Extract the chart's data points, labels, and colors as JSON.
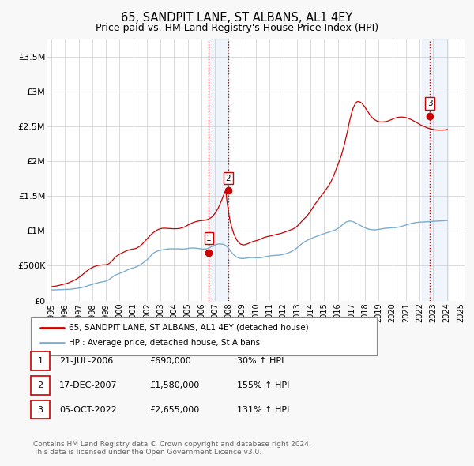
{
  "title": "65, SANDPIT LANE, ST ALBANS, AL1 4EY",
  "subtitle": "Price paid vs. HM Land Registry's House Price Index (HPI)",
  "title_fontsize": 10.5,
  "subtitle_fontsize": 9,
  "background_color": "#f8f8f8",
  "plot_bg_color": "#ffffff",
  "grid_color": "#cccccc",
  "ylim": [
    0,
    3750000
  ],
  "yticks": [
    0,
    500000,
    1000000,
    1500000,
    2000000,
    2500000,
    3000000,
    3500000
  ],
  "ytick_labels": [
    "£0",
    "£500K",
    "£1M",
    "£1.5M",
    "£2M",
    "£2.5M",
    "£3M",
    "£3.5M"
  ],
  "red_line_color": "#cc0000",
  "blue_line_color": "#7aadcf",
  "transactions": [
    {
      "date_num": 2006.55,
      "price": 690000,
      "label": "1"
    },
    {
      "date_num": 2007.96,
      "price": 1580000,
      "label": "2"
    },
    {
      "date_num": 2022.76,
      "price": 2655000,
      "label": "3"
    }
  ],
  "vline_color": "#cc0000",
  "highlight_bg": "#ddeeff",
  "legend_label_red": "65, SANDPIT LANE, ST ALBANS, AL1 4EY (detached house)",
  "legend_label_blue": "HPI: Average price, detached house, St Albans",
  "table_rows": [
    {
      "num": "1",
      "date": "21-JUL-2006",
      "price": "£690,000",
      "change": "30% ↑ HPI"
    },
    {
      "num": "2",
      "date": "17-DEC-2007",
      "price": "£1,580,000",
      "change": "155% ↑ HPI"
    },
    {
      "num": "3",
      "date": "05-OCT-2022",
      "price": "£2,655,000",
      "change": "131% ↑ HPI"
    }
  ],
  "footnote": "Contains HM Land Registry data © Crown copyright and database right 2024.\nThis data is licensed under the Open Government Licence v3.0.",
  "years": [
    1995.04,
    1995.12,
    1995.21,
    1995.29,
    1995.37,
    1995.46,
    1995.54,
    1995.62,
    1995.71,
    1995.79,
    1995.87,
    1995.96,
    1996.04,
    1996.12,
    1996.21,
    1996.29,
    1996.37,
    1996.46,
    1996.54,
    1996.62,
    1996.71,
    1996.79,
    1996.87,
    1996.96,
    1997.04,
    1997.12,
    1997.21,
    1997.29,
    1997.37,
    1997.46,
    1997.54,
    1997.62,
    1997.71,
    1997.79,
    1997.87,
    1997.96,
    1998.04,
    1998.12,
    1998.21,
    1998.29,
    1998.37,
    1998.46,
    1998.54,
    1998.62,
    1998.71,
    1998.79,
    1998.87,
    1998.96,
    1999.04,
    1999.12,
    1999.21,
    1999.29,
    1999.37,
    1999.46,
    1999.54,
    1999.62,
    1999.71,
    1999.79,
    1999.87,
    1999.96,
    2000.04,
    2000.12,
    2000.21,
    2000.29,
    2000.37,
    2000.46,
    2000.54,
    2000.62,
    2000.71,
    2000.79,
    2000.87,
    2000.96,
    2001.04,
    2001.12,
    2001.21,
    2001.29,
    2001.37,
    2001.46,
    2001.54,
    2001.62,
    2001.71,
    2001.79,
    2001.87,
    2001.96,
    2002.04,
    2002.12,
    2002.21,
    2002.29,
    2002.37,
    2002.46,
    2002.54,
    2002.62,
    2002.71,
    2002.79,
    2002.87,
    2002.96,
    2003.04,
    2003.12,
    2003.21,
    2003.29,
    2003.37,
    2003.46,
    2003.54,
    2003.62,
    2003.71,
    2003.79,
    2003.87,
    2003.96,
    2004.04,
    2004.12,
    2004.21,
    2004.29,
    2004.37,
    2004.46,
    2004.54,
    2004.62,
    2004.71,
    2004.79,
    2004.87,
    2004.96,
    2005.04,
    2005.12,
    2005.21,
    2005.29,
    2005.37,
    2005.46,
    2005.54,
    2005.62,
    2005.71,
    2005.79,
    2005.87,
    2005.96,
    2006.04,
    2006.12,
    2006.21,
    2006.29,
    2006.37,
    2006.46,
    2006.54,
    2006.62,
    2006.71,
    2006.79,
    2006.87,
    2006.96,
    2007.04,
    2007.12,
    2007.21,
    2007.29,
    2007.37,
    2007.46,
    2007.54,
    2007.62,
    2007.71,
    2007.79,
    2007.87,
    2007.96,
    2008.04,
    2008.12,
    2008.21,
    2008.29,
    2008.37,
    2008.46,
    2008.54,
    2008.62,
    2008.71,
    2008.79,
    2008.87,
    2008.96,
    2009.04,
    2009.12,
    2009.21,
    2009.29,
    2009.37,
    2009.46,
    2009.54,
    2009.62,
    2009.71,
    2009.79,
    2009.87,
    2009.96,
    2010.04,
    2010.12,
    2010.21,
    2010.29,
    2010.37,
    2010.46,
    2010.54,
    2010.62,
    2010.71,
    2010.79,
    2010.87,
    2010.96,
    2011.04,
    2011.12,
    2011.21,
    2011.29,
    2011.37,
    2011.46,
    2011.54,
    2011.62,
    2011.71,
    2011.79,
    2011.87,
    2011.96,
    2012.04,
    2012.12,
    2012.21,
    2012.29,
    2012.37,
    2012.46,
    2012.54,
    2012.62,
    2012.71,
    2012.79,
    2012.87,
    2012.96,
    2013.04,
    2013.12,
    2013.21,
    2013.29,
    2013.37,
    2013.46,
    2013.54,
    2013.62,
    2013.71,
    2013.79,
    2013.87,
    2013.96,
    2014.04,
    2014.12,
    2014.21,
    2014.29,
    2014.37,
    2014.46,
    2014.54,
    2014.62,
    2014.71,
    2014.79,
    2014.87,
    2014.96,
    2015.04,
    2015.12,
    2015.21,
    2015.29,
    2015.37,
    2015.46,
    2015.54,
    2015.62,
    2015.71,
    2015.79,
    2015.87,
    2015.96,
    2016.04,
    2016.12,
    2016.21,
    2016.29,
    2016.37,
    2016.46,
    2016.54,
    2016.62,
    2016.71,
    2016.79,
    2016.87,
    2016.96,
    2017.04,
    2017.12,
    2017.21,
    2017.29,
    2017.37,
    2017.46,
    2017.54,
    2017.62,
    2017.71,
    2017.79,
    2017.87,
    2017.96,
    2018.04,
    2018.12,
    2018.21,
    2018.29,
    2018.37,
    2018.46,
    2018.54,
    2018.62,
    2018.71,
    2018.79,
    2018.87,
    2018.96,
    2019.04,
    2019.12,
    2019.21,
    2019.29,
    2019.37,
    2019.46,
    2019.54,
    2019.62,
    2019.71,
    2019.79,
    2019.87,
    2019.96,
    2020.04,
    2020.12,
    2020.21,
    2020.29,
    2020.37,
    2020.46,
    2020.54,
    2020.62,
    2020.71,
    2020.79,
    2020.87,
    2020.96,
    2021.04,
    2021.12,
    2021.21,
    2021.29,
    2021.37,
    2021.46,
    2021.54,
    2021.62,
    2021.71,
    2021.79,
    2021.87,
    2021.96,
    2022.04,
    2022.12,
    2022.21,
    2022.29,
    2022.37,
    2022.46,
    2022.54,
    2022.62,
    2022.71,
    2022.79,
    2022.87,
    2022.96,
    2023.04,
    2023.12,
    2023.21,
    2023.29,
    2023.37,
    2023.46,
    2023.54,
    2023.62,
    2023.71,
    2023.79,
    2023.87,
    2023.96,
    2024.04,
    2024.12,
    2024.21,
    2024.29,
    2024.37,
    2024.46,
    2024.54
  ],
  "blue_values": [
    152000,
    153000,
    153500,
    154000,
    154500,
    155000,
    155500,
    156000,
    156500,
    157000,
    157500,
    158000,
    159000,
    160000,
    161000,
    162000,
    163000,
    165000,
    167000,
    169000,
    171000,
    173000,
    175000,
    177000,
    180000,
    183000,
    187000,
    191000,
    195000,
    200000,
    205000,
    210000,
    215000,
    220000,
    225000,
    230000,
    235000,
    240000,
    245000,
    250000,
    254000,
    258000,
    262000,
    265000,
    268000,
    271000,
    274000,
    277000,
    282000,
    290000,
    300000,
    312000,
    325000,
    338000,
    350000,
    360000,
    368000,
    375000,
    381000,
    387000,
    393000,
    399000,
    405000,
    412000,
    420000,
    428000,
    436000,
    444000,
    452000,
    458000,
    463000,
    468000,
    472000,
    477000,
    483000,
    490000,
    498000,
    507000,
    517000,
    528000,
    540000,
    553000,
    566000,
    578000,
    591000,
    608000,
    627000,
    646000,
    663000,
    677000,
    689000,
    699000,
    707000,
    713000,
    718000,
    722000,
    725000,
    728000,
    731000,
    734000,
    737000,
    740000,
    742000,
    743000,
    744000,
    744000,
    744000,
    744000,
    744000,
    743000,
    743000,
    742000,
    741000,
    740000,
    740000,
    740000,
    741000,
    742000,
    744000,
    747000,
    750000,
    752000,
    754000,
    755000,
    755000,
    755000,
    754000,
    752000,
    750000,
    748000,
    746000,
    744000,
    742000,
    740000,
    740000,
    741000,
    743000,
    748000,
    755000,
    763000,
    772000,
    781000,
    789000,
    796000,
    802000,
    807000,
    811000,
    813000,
    814000,
    812000,
    809000,
    806000,
    800000,
    790000,
    775000,
    757000,
    736000,
    714000,
    693000,
    674000,
    657000,
    643000,
    631000,
    621000,
    614000,
    609000,
    606000,
    604000,
    604000,
    605000,
    607000,
    609000,
    612000,
    615000,
    617000,
    618000,
    618000,
    617000,
    616000,
    615000,
    614000,
    614000,
    614000,
    615000,
    617000,
    620000,
    623000,
    627000,
    631000,
    635000,
    638000,
    641000,
    643000,
    645000,
    646000,
    647000,
    648000,
    649000,
    650000,
    651000,
    653000,
    655000,
    658000,
    661000,
    665000,
    669000,
    674000,
    679000,
    685000,
    692000,
    699000,
    707000,
    716000,
    726000,
    737000,
    749000,
    762000,
    776000,
    790000,
    804000,
    818000,
    830000,
    841000,
    851000,
    860000,
    868000,
    876000,
    883000,
    890000,
    897000,
    904000,
    911000,
    917000,
    924000,
    930000,
    937000,
    943000,
    949000,
    955000,
    960000,
    965000,
    970000,
    975000,
    980000,
    985000,
    990000,
    995000,
    1000000,
    1006000,
    1013000,
    1021000,
    1030000,
    1040000,
    1052000,
    1065000,
    1079000,
    1093000,
    1107000,
    1119000,
    1129000,
    1136000,
    1141000,
    1143000,
    1142000,
    1139000,
    1134000,
    1127000,
    1119000,
    1111000,
    1102000,
    1093000,
    1084000,
    1075000,
    1066000,
    1058000,
    1050000,
    1043000,
    1037000,
    1031000,
    1026000,
    1022000,
    1019000,
    1017000,
    1016000,
    1016000,
    1017000,
    1019000,
    1022000,
    1025000,
    1028000,
    1031000,
    1034000,
    1036000,
    1038000,
    1040000,
    1041000,
    1042000,
    1043000,
    1044000,
    1045000,
    1046000,
    1047000,
    1049000,
    1051000,
    1053000,
    1056000,
    1059000,
    1063000,
    1067000,
    1072000,
    1077000,
    1082000,
    1087000,
    1092000,
    1097000,
    1102000,
    1107000,
    1111000,
    1115000,
    1118000,
    1121000,
    1123000,
    1125000,
    1126000,
    1127000,
    1128000,
    1129000,
    1130000,
    1131000,
    1132000,
    1133000,
    1134000,
    1135000,
    1136000,
    1137000,
    1138000,
    1139000,
    1140000,
    1141000,
    1142000,
    1143000,
    1144000,
    1145000,
    1146000,
    1147000,
    1148000,
    1149000,
    1150000,
    1151000
  ],
  "red_values": [
    200000,
    203000,
    205000,
    207000,
    210000,
    213000,
    217000,
    221000,
    225000,
    229000,
    233000,
    237000,
    241000,
    246000,
    252000,
    258000,
    265000,
    272000,
    280000,
    288000,
    296000,
    305000,
    315000,
    325000,
    336000,
    348000,
    361000,
    374000,
    388000,
    402000,
    416000,
    429000,
    441000,
    452000,
    462000,
    471000,
    479000,
    487000,
    493000,
    499000,
    503000,
    507000,
    509000,
    511000,
    512000,
    513000,
    513000,
    514000,
    516000,
    521000,
    530000,
    542000,
    557000,
    574000,
    592000,
    610000,
    626000,
    640000,
    652000,
    662000,
    671000,
    679000,
    687000,
    695000,
    703000,
    711000,
    718000,
    724000,
    729000,
    733000,
    736000,
    739000,
    742000,
    746000,
    751000,
    758000,
    767000,
    778000,
    791000,
    806000,
    822000,
    840000,
    858000,
    876000,
    893000,
    910000,
    928000,
    945000,
    961000,
    975000,
    988000,
    999000,
    1009000,
    1018000,
    1025000,
    1031000,
    1035000,
    1038000,
    1039000,
    1040000,
    1039000,
    1038000,
    1037000,
    1036000,
    1035000,
    1034000,
    1033000,
    1032000,
    1032000,
    1032000,
    1033000,
    1034000,
    1036000,
    1039000,
    1043000,
    1048000,
    1054000,
    1061000,
    1069000,
    1078000,
    1087000,
    1096000,
    1105000,
    1113000,
    1120000,
    1126000,
    1131000,
    1136000,
    1140000,
    1143000,
    1146000,
    1148000,
    1150000,
    1152000,
    1154000,
    1157000,
    1161000,
    1166000,
    1173000,
    1182000,
    1193000,
    1207000,
    1224000,
    1244000,
    1267000,
    1293000,
    1322000,
    1355000,
    1391000,
    1430000,
    1471000,
    1514000,
    1558000,
    1580000,
    1430000,
    1310000,
    1210000,
    1130000,
    1065000,
    1010000,
    963000,
    923000,
    889000,
    862000,
    840000,
    824000,
    812000,
    804000,
    800000,
    800000,
    803000,
    808000,
    815000,
    823000,
    831000,
    838000,
    844000,
    849000,
    854000,
    858000,
    862000,
    867000,
    873000,
    880000,
    887000,
    895000,
    902000,
    908000,
    913000,
    917000,
    921000,
    924000,
    928000,
    932000,
    936000,
    940000,
    944000,
    948000,
    952000,
    955000,
    959000,
    963000,
    968000,
    973000,
    979000,
    985000,
    991000,
    997000,
    1003000,
    1009000,
    1015000,
    1021000,
    1028000,
    1036000,
    1046000,
    1058000,
    1072000,
    1088000,
    1106000,
    1124000,
    1142000,
    1159000,
    1175000,
    1191000,
    1208000,
    1227000,
    1248000,
    1271000,
    1295000,
    1321000,
    1347000,
    1372000,
    1396000,
    1418000,
    1440000,
    1462000,
    1484000,
    1506000,
    1528000,
    1549000,
    1570000,
    1591000,
    1613000,
    1637000,
    1663000,
    1692000,
    1724000,
    1760000,
    1799000,
    1840000,
    1882000,
    1924000,
    1966000,
    2009000,
    2055000,
    2105000,
    2160000,
    2220000,
    2285000,
    2355000,
    2430000,
    2505000,
    2580000,
    2650000,
    2710000,
    2760000,
    2800000,
    2830000,
    2850000,
    2860000,
    2860000,
    2855000,
    2845000,
    2830000,
    2810000,
    2790000,
    2765000,
    2740000,
    2715000,
    2690000,
    2665000,
    2645000,
    2625000,
    2610000,
    2600000,
    2590000,
    2580000,
    2575000,
    2570000,
    2568000,
    2567000,
    2567000,
    2568000,
    2570000,
    2573000,
    2577000,
    2582000,
    2588000,
    2595000,
    2602000,
    2609000,
    2616000,
    2622000,
    2627000,
    2631000,
    2634000,
    2636000,
    2637000,
    2637000,
    2636000,
    2634000,
    2631000,
    2627000,
    2622000,
    2616000,
    2609000,
    2602000,
    2594000,
    2585000,
    2576000,
    2567000,
    2557000,
    2548000,
    2539000,
    2530000,
    2521000,
    2513000,
    2505000,
    2498000,
    2491000,
    2485000,
    2479000,
    2474000,
    2469000,
    2465000,
    2461000,
    2458000,
    2455000,
    2453000,
    2451000,
    2450000,
    2449000,
    2449000,
    2449000,
    2450000,
    2451000,
    2453000,
    2456000,
    2459000
  ]
}
